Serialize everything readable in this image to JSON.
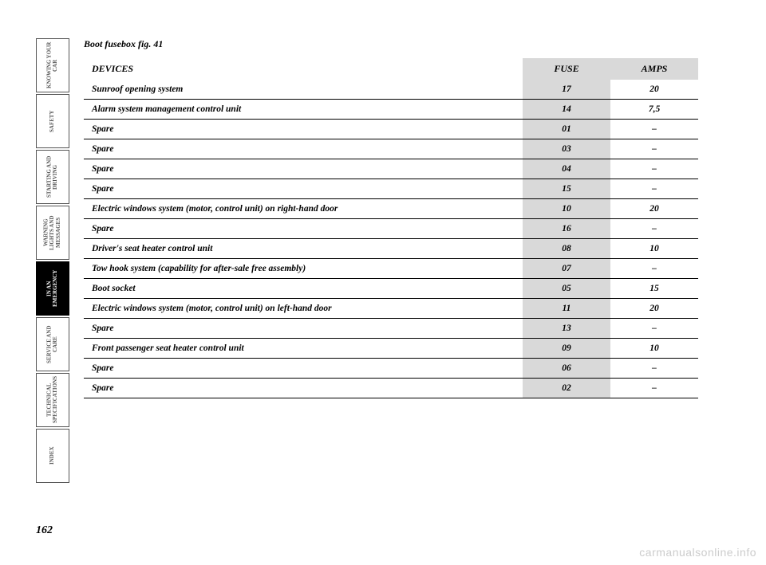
{
  "page": {
    "title": "Boot fusebox fig. 41",
    "number": "162",
    "watermark": "carmanualsonline.info"
  },
  "tabs": [
    {
      "label": "KNOWING YOUR CAR",
      "active": false
    },
    {
      "label": "SAFETY",
      "active": false
    },
    {
      "label": "STARTING AND DRIVING",
      "active": false
    },
    {
      "label": "WARNING LIGHTS AND MESSAGES",
      "active": false
    },
    {
      "label": "IN AN EMERGENCY",
      "active": true
    },
    {
      "label": "SERVICE AND CARE",
      "active": false
    },
    {
      "label": "TECHNICAL SPECIFICATIONS",
      "active": false
    },
    {
      "label": "INDEX",
      "active": false
    }
  ],
  "table": {
    "headers": {
      "devices": "DEVICES",
      "fuse": "FUSE",
      "amps": "AMPS"
    },
    "rows": [
      {
        "device": "Sunroof opening system",
        "fuse": "17",
        "amps": "20"
      },
      {
        "device": "Alarm system management control unit",
        "fuse": "14",
        "amps": "7,5"
      },
      {
        "device": "Spare",
        "fuse": "01",
        "amps": "–"
      },
      {
        "device": "Spare",
        "fuse": "03",
        "amps": "–"
      },
      {
        "device": "Spare",
        "fuse": "04",
        "amps": "–"
      },
      {
        "device": "Spare",
        "fuse": "15",
        "amps": "–"
      },
      {
        "device": "Electric windows system (motor, control unit) on right-hand door",
        "fuse": "10",
        "amps": "20"
      },
      {
        "device": "Spare",
        "fuse": "16",
        "amps": "–"
      },
      {
        "device": "Driver's seat heater control unit",
        "fuse": "08",
        "amps": "10"
      },
      {
        "device": "Tow hook system (capability for after-sale free assembly)",
        "fuse": "07",
        "amps": "–"
      },
      {
        "device": "Boot socket",
        "fuse": "05",
        "amps": "15"
      },
      {
        "device": "Electric windows system (motor, control unit) on left-hand door",
        "fuse": "11",
        "amps": "20"
      },
      {
        "device": "Spare",
        "fuse": "13",
        "amps": "–"
      },
      {
        "device": "Front passenger seat heater control unit",
        "fuse": "09",
        "amps": "10"
      },
      {
        "device": "Spare",
        "fuse": "06",
        "amps": "–"
      },
      {
        "device": "Spare",
        "fuse": "02",
        "amps": "–"
      }
    ]
  }
}
